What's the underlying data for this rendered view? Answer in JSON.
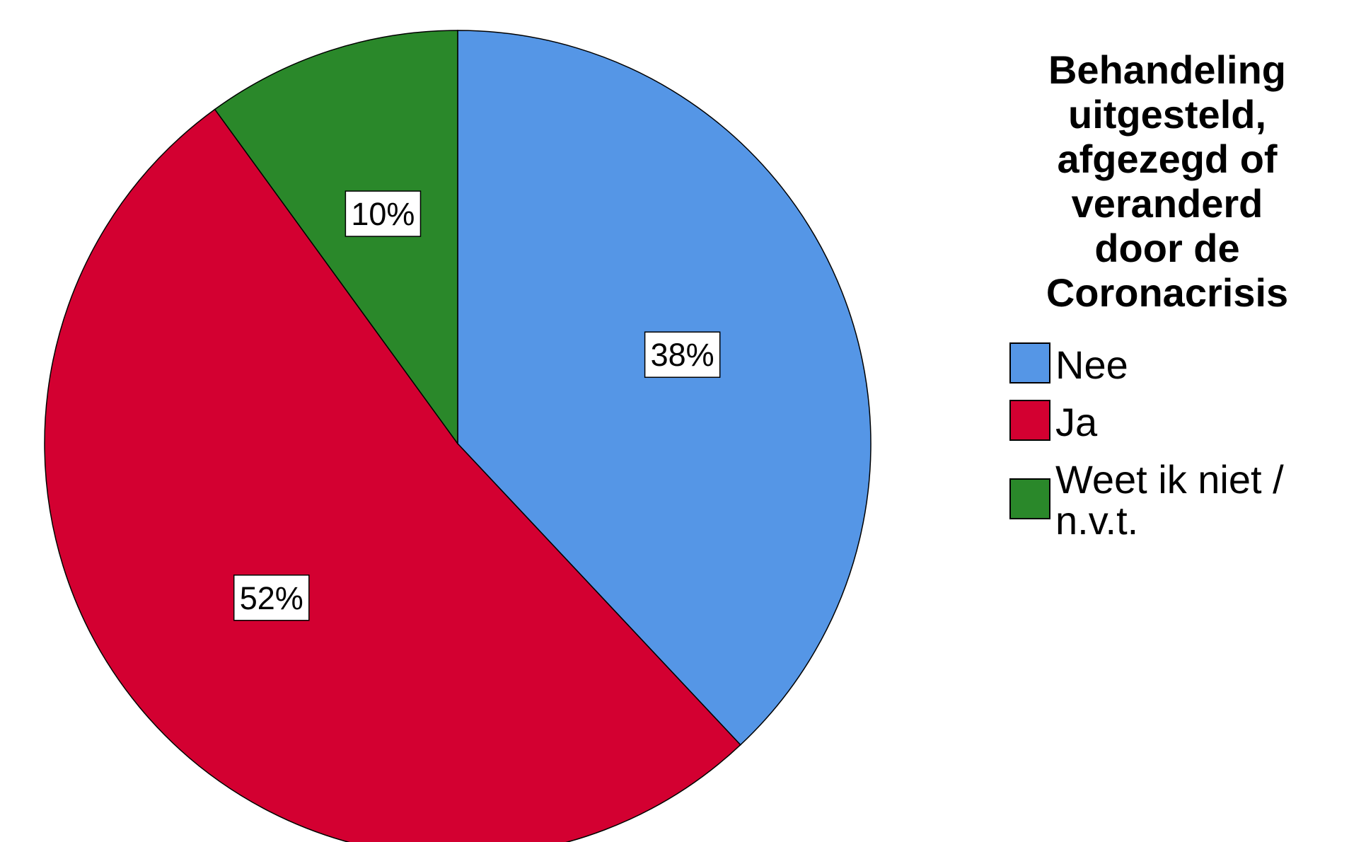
{
  "chart_data": {
    "type": "pie",
    "title": "",
    "legend_title": "Behandeling uitgesteld, afgezegd of veranderd door de Coronacrisis",
    "legend_title_lines": [
      "Behandeling",
      "uitgesteld,",
      "afgezegd of",
      "veranderd",
      "door de",
      "Coronacrisis"
    ],
    "legend_position": "right",
    "start_angle_deg": 0,
    "direction": "clockwise",
    "slices": [
      {
        "label": "Nee",
        "label_lines": [
          "Nee"
        ],
        "value": 38,
        "display": "38%",
        "color": "#5596E6"
      },
      {
        "label": "Ja",
        "label_lines": [
          "Ja"
        ],
        "value": 52,
        "display": "52%",
        "color": "#D30031"
      },
      {
        "label": "Weet ik niet / n.v.t.",
        "label_lines": [
          "Weet ik niet /",
          "n.v.t."
        ],
        "value": 10,
        "display": "10%",
        "color": "#2A882A"
      }
    ]
  }
}
